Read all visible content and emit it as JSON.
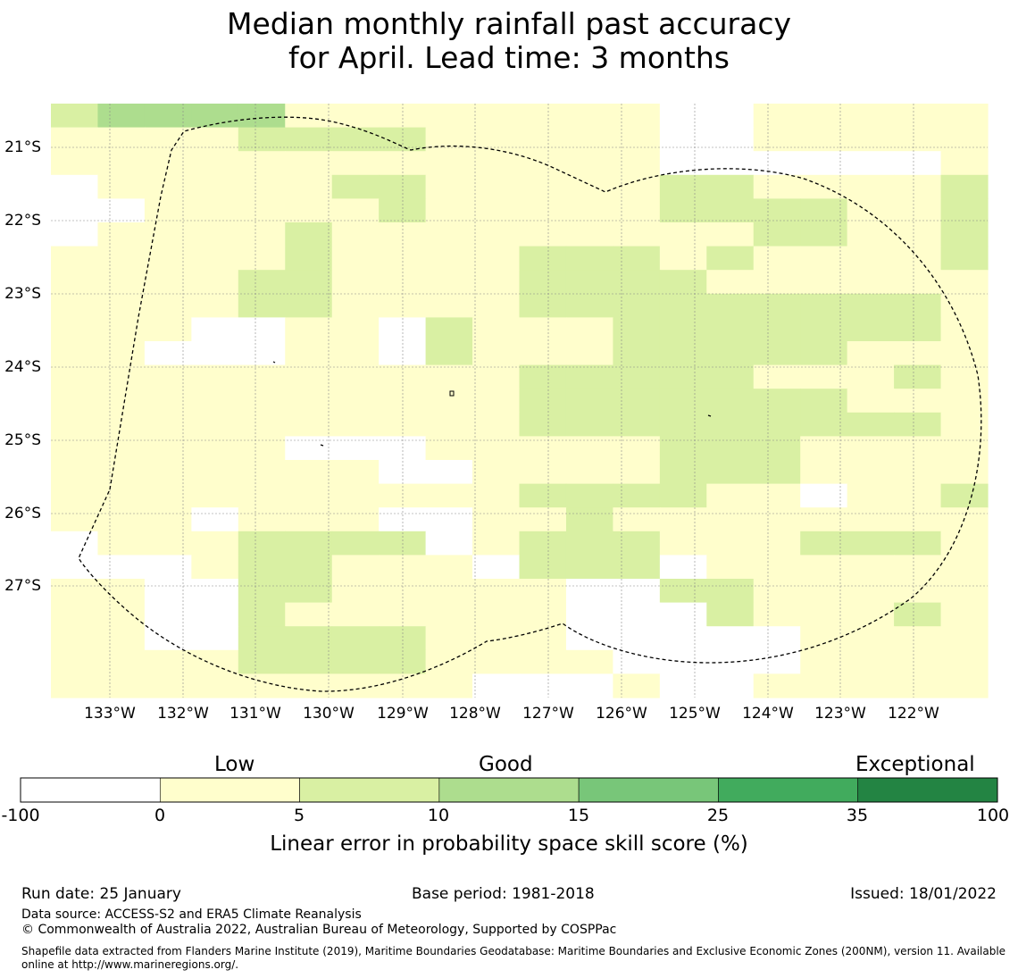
{
  "title": {
    "line1": "Median monthly rainfall past accuracy",
    "line2": "for April. Lead time: 3 months"
  },
  "map": {
    "lat_labels": [
      "21°S",
      "22°S",
      "23°S",
      "24°S",
      "25°S",
      "26°S",
      "27°S"
    ],
    "lon_labels": [
      "133°W",
      "132°W",
      "131°W",
      "130°W",
      "129°W",
      "128°W",
      "127°W",
      "126°W",
      "125°W",
      "124°W",
      "123°W",
      "122°W"
    ],
    "lon_range": [
      -133.8,
      -120.95
    ],
    "lat_range": [
      -20.6,
      -28.75
    ],
    "cell_size_deg": [
      0.833,
      0.555
    ],
    "grid": [
      "23333111111110011111",
      "11112222111110011111",
      "11111111111110000001",
      "01111122111112211112",
      "00111112111112222112",
      "01111211111111122112",
      "11111211112221211112",
      "11112211112222111111",
      "11112211112222222221",
      "11100110211122222221",
      "11000110211122222111",
      "11111111112222211121",
      "11111111112222222111",
      "11111111112222222221",
      "11111000111112221111",
      "11111110011112221111",
      "11111111112222110112",
      "11101110011211111111",
      "01112222012221112221",
      "00012211102220111111",
      "11002211111002211111",
      "11002111111000211121",
      "11002222111000001111",
      "11112222111100001111",
      "11111111100010011111"
    ],
    "category_colors": [
      "#ffffff",
      "#fffecc",
      "#d9f0a3",
      "#addd8e",
      "#78c679",
      "#41ab5d",
      "#238443"
    ]
  },
  "colorbar": {
    "category_labels": [
      "Low",
      "Good",
      "Exceptional"
    ],
    "ticks": [
      "-100",
      "0",
      "5",
      "10",
      "15",
      "25",
      "35",
      "100"
    ],
    "colors": [
      "#ffffff",
      "#fffecc",
      "#d9f0a3",
      "#addd8e",
      "#78c679",
      "#41ab5d",
      "#238443"
    ],
    "label": "Linear error in probability space skill score (%)"
  },
  "footer": {
    "run_date": "Run date: 25 January",
    "base_period": "Base period: 1981-2018",
    "issued": "Issued: 18/01/2022",
    "data_source": "Data source: ACCESS-S2 and ERA5 Climate Reanalysis",
    "copyright": "© Commonwealth of Australia 2022, Australian Bureau of Meteorology, Supported by COSPPac",
    "shapefile_line1": "Shapefile data extracted from Flanders Marine Institute (2019), Maritime Boundaries Geodatabase: Maritime Boundaries and Exclusive Economic Zones (200NM), version 11. Available",
    "shapefile_line2": "online at http://www.marineregions.org/."
  }
}
